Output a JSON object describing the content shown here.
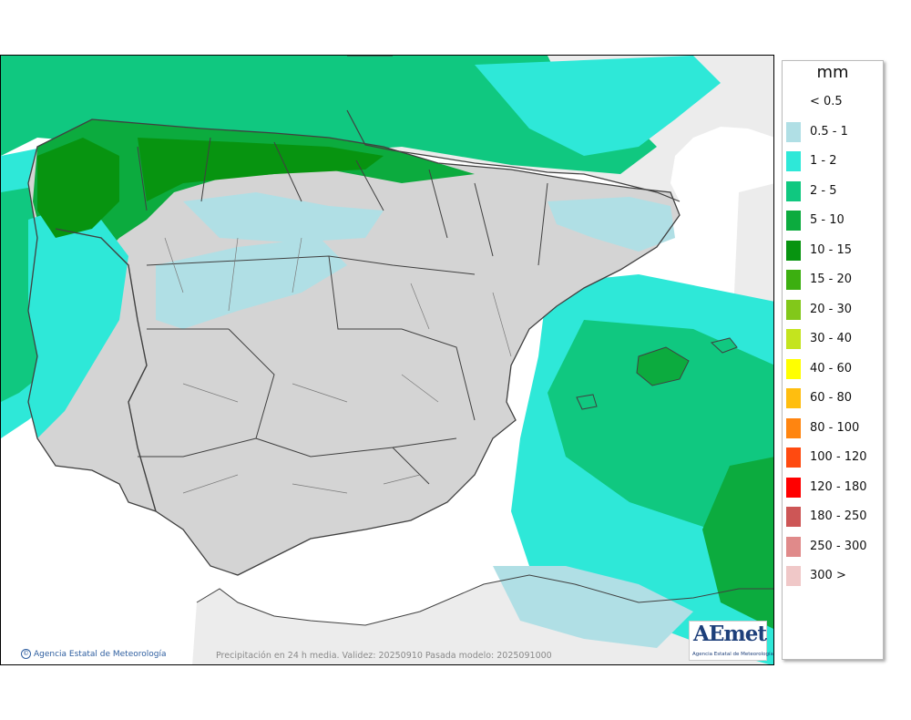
{
  "map": {
    "title": "Precipitación en 24 h media",
    "validity_text": "Precipitación en 24 h media. Validez: 20250910 Pasada modelo: 2025091000",
    "credit": "Agencia Estatal de Meteorología",
    "credit_symbol": "©",
    "colors": {
      "sea": "#ffffff",
      "land_outside": "#ececec",
      "dry_land": "#d4d4d4",
      "borders": "#404040"
    }
  },
  "logo": {
    "text": "AEmet",
    "subtitle": "Agencia Estatal de Meteorología"
  },
  "legend": {
    "unit": "mm",
    "items": [
      {
        "label": "< 0.5",
        "color": ""
      },
      {
        "label": "0.5 - 1",
        "color": "#b0dfe5"
      },
      {
        "label": "1 - 2",
        "color": "#2ee8d8"
      },
      {
        "label": "2 - 5",
        "color": "#10c880"
      },
      {
        "label": "5 - 10",
        "color": "#0cab3e"
      },
      {
        "label": "10 - 15",
        "color": "#079410"
      },
      {
        "label": "15 - 20",
        "color": "#3caf10"
      },
      {
        "label": "20 - 30",
        "color": "#82c81a"
      },
      {
        "label": "30 - 40",
        "color": "#c4e41e"
      },
      {
        "label": "40 - 60",
        "color": "#ffff00"
      },
      {
        "label": "60 - 80",
        "color": "#ffbe0f"
      },
      {
        "label": "80 - 100",
        "color": "#ff8510"
      },
      {
        "label": "100 - 120",
        "color": "#ff4a10"
      },
      {
        "label": "120 - 180",
        "color": "#ff0000"
      },
      {
        "label": "180 - 250",
        "color": "#cd5656"
      },
      {
        "label": "250 - 300",
        "color": "#e08a8a"
      },
      {
        "label": "300 >",
        "color": "#f0c8c8"
      }
    ]
  }
}
